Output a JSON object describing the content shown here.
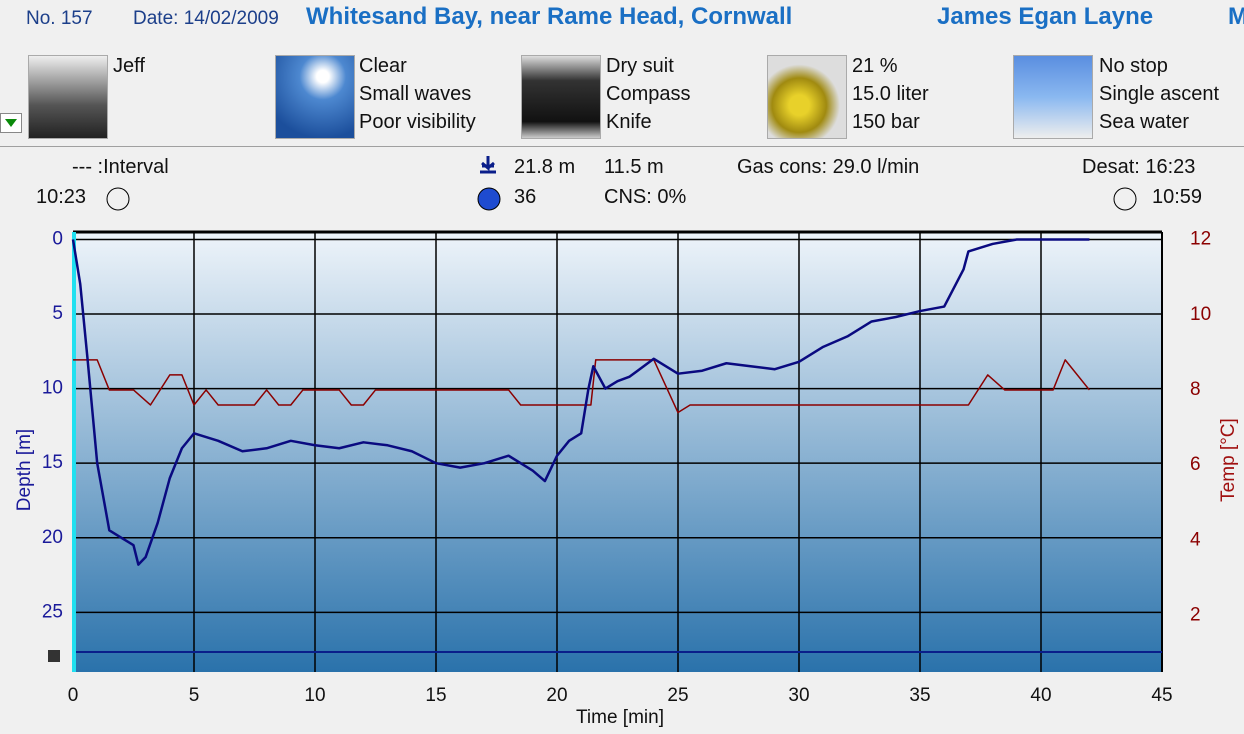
{
  "header": {
    "number": "No. 157",
    "date": "Date: 14/02/2009",
    "location": "Whitesand Bay, near Rame Head, Cornwall",
    "diver": "James Egan Layne",
    "clipped": "M"
  },
  "panels": [
    {
      "lines": [
        "Jeff"
      ]
    },
    {
      "lines": [
        "Clear",
        "Small waves",
        "Poor visibility"
      ]
    },
    {
      "lines": [
        "Dry suit",
        "Compass",
        "Knife"
      ]
    },
    {
      "lines": [
        "21 %",
        "15.0 liter",
        "150 bar"
      ]
    },
    {
      "lines": [
        "No stop",
        "Single ascent",
        "Sea water"
      ]
    }
  ],
  "stats": {
    "interval": "--- :Interval",
    "entry_time": "10:23",
    "max_depth": "21.8 m",
    "avg_depth": "11.5 m",
    "duration": "36",
    "cns": "CNS:  0%",
    "gas": "Gas cons: 29.0 l/min",
    "desat": "Desat: 16:23",
    "exit_time": "10:59"
  },
  "chart_data": {
    "type": "line",
    "x_label": "Time [min]",
    "y_label": "Depth [m]",
    "y2_label": "Temp [°C]",
    "xlim": [
      0,
      45
    ],
    "xticks": [
      0,
      5,
      10,
      15,
      20,
      25,
      30,
      35,
      40,
      45
    ],
    "ylim": [
      -0.5,
      29
    ],
    "y_inverted": true,
    "yticks": [
      0,
      5,
      10,
      15,
      20,
      25
    ],
    "y2lim": [
      0.5,
      12.2
    ],
    "y2ticks": [
      2,
      4,
      6,
      8,
      10,
      12
    ],
    "grid": true,
    "series": [
      {
        "name": "Depth",
        "color": "#0a0a80",
        "x": [
          0,
          0.3,
          0.6,
          1,
          1.5,
          2,
          2.5,
          2.7,
          3,
          3.5,
          4,
          4.5,
          5,
          6,
          7,
          8,
          9,
          10,
          11,
          12,
          13,
          14,
          15,
          16,
          17,
          18,
          19,
          19.5,
          20,
          20.5,
          21,
          21.3,
          21.5,
          22,
          22.5,
          23,
          24,
          25,
          26,
          27,
          28,
          29,
          30,
          31,
          32,
          33,
          34,
          35,
          36,
          36.8,
          37,
          38,
          39,
          42
        ],
        "values": [
          0,
          3,
          8,
          15,
          19.5,
          20,
          20.5,
          21.8,
          21.3,
          19,
          16,
          14,
          13,
          13.5,
          14.2,
          14,
          13.5,
          13.8,
          14,
          13.6,
          13.8,
          14.2,
          15,
          15.3,
          15,
          14.5,
          15.5,
          16.2,
          14.5,
          13.5,
          13,
          10,
          8.5,
          10,
          9.5,
          9.2,
          8,
          9,
          8.8,
          8.3,
          8.5,
          8.7,
          8.2,
          7.2,
          6.5,
          5.5,
          5.2,
          4.8,
          4.5,
          2,
          0.8,
          0.3,
          0,
          0
        ]
      },
      {
        "name": "Temperature",
        "color": "#8b0000",
        "axis": "y2",
        "x": [
          0,
          1,
          1.5,
          2.5,
          3.2,
          4,
          4.5,
          5,
          5.5,
          6,
          7.5,
          8,
          8.5,
          9,
          9.5,
          11,
          11.5,
          12,
          12.5,
          18,
          18.5,
          21.4,
          21.6,
          24,
          25,
          25.5,
          37,
          37.8,
          38.5,
          40.5,
          41,
          42
        ],
        "values": [
          8.8,
          8.8,
          8,
          8,
          7.6,
          8.4,
          8.4,
          7.6,
          8,
          7.6,
          7.6,
          8,
          7.6,
          7.6,
          8,
          8,
          7.6,
          7.6,
          8,
          8,
          7.6,
          7.6,
          8.8,
          8.8,
          7.4,
          7.6,
          7.6,
          8.4,
          8,
          8,
          8.8,
          8
        ]
      }
    ]
  }
}
